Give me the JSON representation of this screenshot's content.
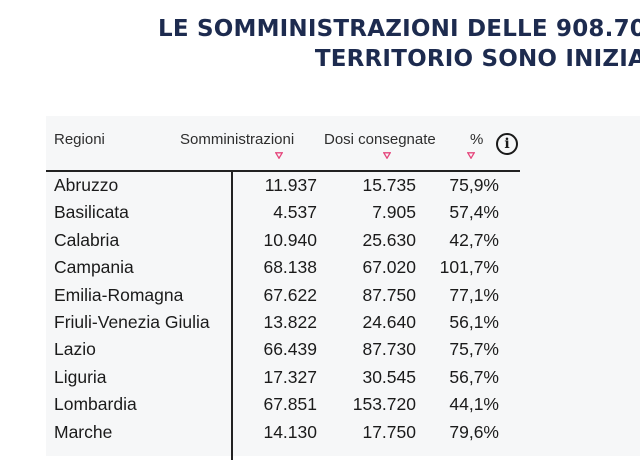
{
  "headline": {
    "line1": "LE SOMMINISTRAZIONI DELLE 908.70",
    "line2": "TERRITORIO SONO INIZIA"
  },
  "table": {
    "headers": {
      "region": "Regioni",
      "administrations": "Somministrazioni",
      "doses_delivered": "Dosi consegnate",
      "percent": "%"
    },
    "info_label": "i",
    "sort_icon": "sort-down-icon",
    "accent_color": "#e5467c",
    "rows": [
      {
        "region": "Abruzzo",
        "administrations": "11.937",
        "doses": "15.735",
        "percent": "75,9%"
      },
      {
        "region": "Basilicata",
        "administrations": "4.537",
        "doses": "7.905",
        "percent": "57,4%"
      },
      {
        "region": "Calabria",
        "administrations": "10.940",
        "doses": "25.630",
        "percent": "42,7%"
      },
      {
        "region": "Campania",
        "administrations": "68.138",
        "doses": "67.020",
        "percent": "101,7%"
      },
      {
        "region": "Emilia-Romagna",
        "administrations": "67.622",
        "doses": "87.750",
        "percent": "77,1%"
      },
      {
        "region": "Friuli-Venezia Giulia",
        "administrations": "13.822",
        "doses": "24.640",
        "percent": "56,1%"
      },
      {
        "region": "Lazio",
        "administrations": "66.439",
        "doses": "87.730",
        "percent": "75,7%"
      },
      {
        "region": "Liguria",
        "administrations": "17.327",
        "doses": "30.545",
        "percent": "56,7%"
      },
      {
        "region": "Lombardia",
        "administrations": "67.851",
        "doses": "153.720",
        "percent": "44,1%"
      },
      {
        "region": "Marche",
        "administrations": "14.130",
        "doses": "17.750",
        "percent": "79,6%"
      }
    ]
  }
}
